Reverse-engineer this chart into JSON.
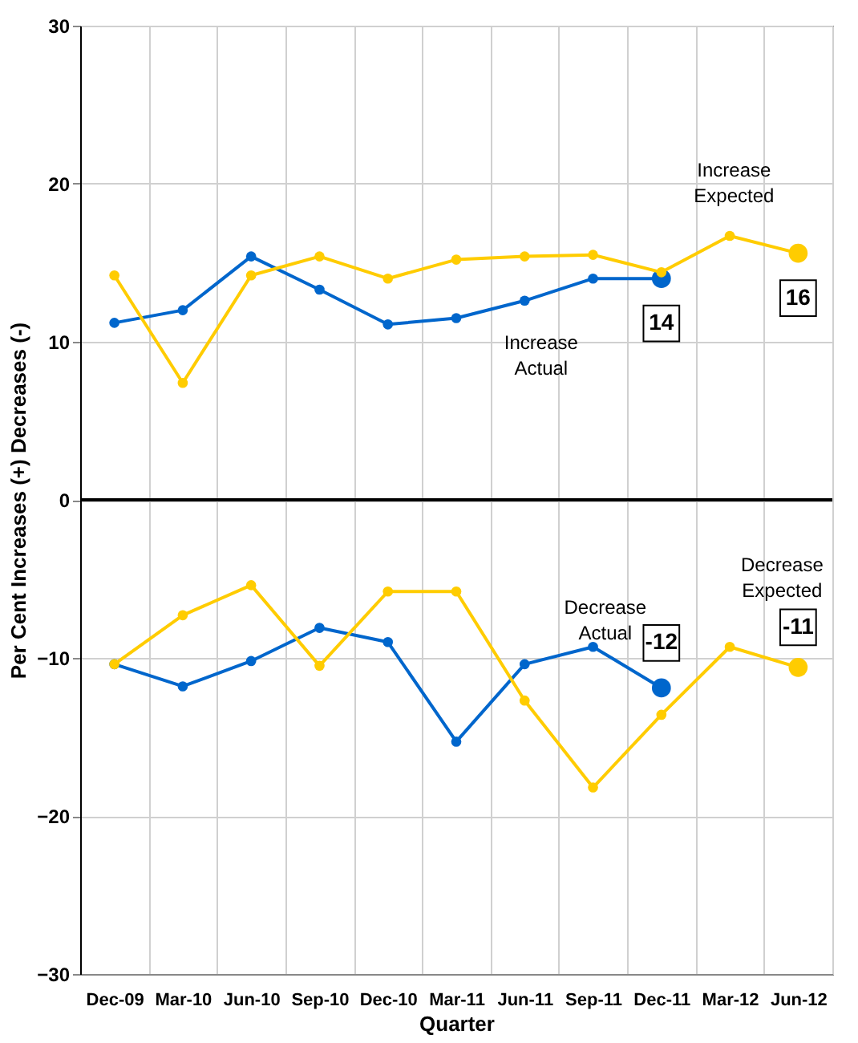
{
  "chart_data": {
    "type": "line",
    "xlabel": "Quarter",
    "ylabel": "Per Cent Increases (+) Decreases (-)",
    "categories": [
      "Dec-09",
      "Mar-10",
      "Jun-10",
      "Sep-10",
      "Dec-10",
      "Mar-11",
      "Jun-11",
      "Sep-11",
      "Dec-11",
      "Mar-12",
      "Jun-12"
    ],
    "series": [
      {
        "name": "Increase Actual",
        "color": "#0066cc",
        "values": [
          11.2,
          12.0,
          15.4,
          13.3,
          11.1,
          11.5,
          12.6,
          14.0,
          14.0,
          null,
          null
        ],
        "value_labels": [
          null,
          null,
          null,
          null,
          null,
          null,
          null,
          null,
          "14",
          null,
          null
        ]
      },
      {
        "name": "Increase Expected",
        "color": "#ffcc00",
        "values": [
          14.2,
          7.4,
          14.2,
          15.4,
          14.0,
          15.2,
          15.4,
          15.5,
          14.4,
          16.7,
          15.6
        ],
        "value_labels": [
          null,
          null,
          null,
          null,
          null,
          null,
          null,
          null,
          null,
          null,
          "16"
        ]
      },
      {
        "name": "Decrease Actual",
        "color": "#0066cc",
        "values": [
          -10.4,
          -11.8,
          -10.2,
          -8.1,
          -9.0,
          -15.3,
          -10.4,
          -9.3,
          -11.9,
          null,
          null
        ],
        "value_labels": [
          null,
          null,
          null,
          null,
          null,
          null,
          null,
          null,
          "-12",
          null,
          null
        ]
      },
      {
        "name": "Decrease Expected",
        "color": "#ffcc00",
        "values": [
          -10.4,
          -7.3,
          -5.4,
          -10.5,
          -5.8,
          -5.8,
          -12.7,
          -18.2,
          -13.6,
          -9.3,
          -10.6
        ],
        "value_labels": [
          null,
          null,
          null,
          null,
          null,
          null,
          null,
          null,
          null,
          null,
          "-11"
        ]
      }
    ],
    "ylim": [
      -30,
      30
    ],
    "yticks": [
      -30,
      -20,
      -10,
      0,
      10,
      20,
      30
    ],
    "ref_lines": [
      {
        "axis": "y",
        "value": 0,
        "color": "#000000"
      }
    ],
    "grid": true,
    "legend": false,
    "marker": "circle",
    "line_style": "solid"
  }
}
